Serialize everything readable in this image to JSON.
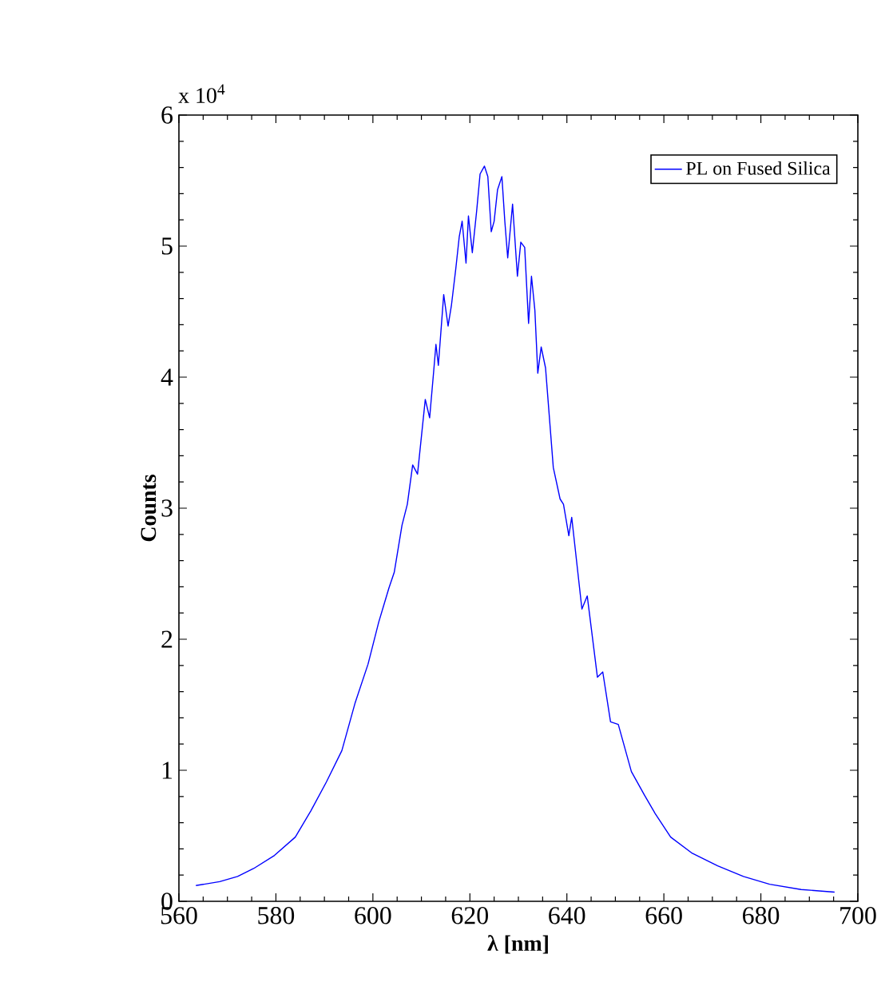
{
  "chart_data": {
    "type": "line",
    "xlabel": "λ [nm]",
    "ylabel": "Counts",
    "annotations": [
      "x 10$^{4}$"
    ],
    "xlim": [
      560,
      700
    ],
    "ylim": [
      0,
      6
    ],
    "xticks": [
      560,
      580,
      600,
      620,
      640,
      660,
      680,
      700
    ],
    "yticks": [
      0,
      1,
      2,
      3,
      4,
      5,
      6
    ],
    "grid": false,
    "legend": "top right",
    "marker": "none",
    "line_style": "solid",
    "series": [
      {
        "name": "PL on Fused Silica",
        "color": "#0000ff",
        "x": [
          563.5,
          568.4,
          572.1,
          575.4,
          579.7,
          584.0,
          587.2,
          590.4,
          593.6,
          596.3,
          599.0,
          601.2,
          603.3,
          604.4,
          606.0,
          607.1,
          608.2,
          609.2,
          610.8,
          611.7,
          612.5,
          613.0,
          613.5,
          614.6,
          615.5,
          616.2,
          617.1,
          617.8,
          618.4,
          619.2,
          619.7,
          620.5,
          621.4,
          622.1,
          623.0,
          623.7,
          624.4,
          625.0,
          625.7,
          626.6,
          627.2,
          627.8,
          628.8,
          629.8,
          630.5,
          631.3,
          632.1,
          632.7,
          633.4,
          634.0,
          634.7,
          635.6,
          637.2,
          638.6,
          639.3,
          640.4,
          641.0,
          643.1,
          644.2,
          646.3,
          647.4,
          649.0,
          650.6,
          653.3,
          656.0,
          658.2,
          661.4,
          665.7,
          671.1,
          676.4,
          681.8,
          688.3,
          695.2
        ],
        "values": [
          0.12,
          0.15,
          0.19,
          0.25,
          0.35,
          0.49,
          0.69,
          0.91,
          1.15,
          1.51,
          1.81,
          2.13,
          2.39,
          2.51,
          2.87,
          3.03,
          3.33,
          3.26,
          3.83,
          3.69,
          4.03,
          4.25,
          4.09,
          4.63,
          4.39,
          4.55,
          4.83,
          5.07,
          5.19,
          4.87,
          5.23,
          4.95,
          5.27,
          5.55,
          5.61,
          5.53,
          5.11,
          5.19,
          5.43,
          5.53,
          5.19,
          4.91,
          5.32,
          4.77,
          5.03,
          4.99,
          4.41,
          4.77,
          4.51,
          4.03,
          4.23,
          4.07,
          3.31,
          3.07,
          3.03,
          2.79,
          2.93,
          2.23,
          2.33,
          1.71,
          1.75,
          1.37,
          1.35,
          0.99,
          0.81,
          0.67,
          0.49,
          0.37,
          0.27,
          0.19,
          0.13,
          0.09,
          0.07
        ]
      }
    ]
  }
}
